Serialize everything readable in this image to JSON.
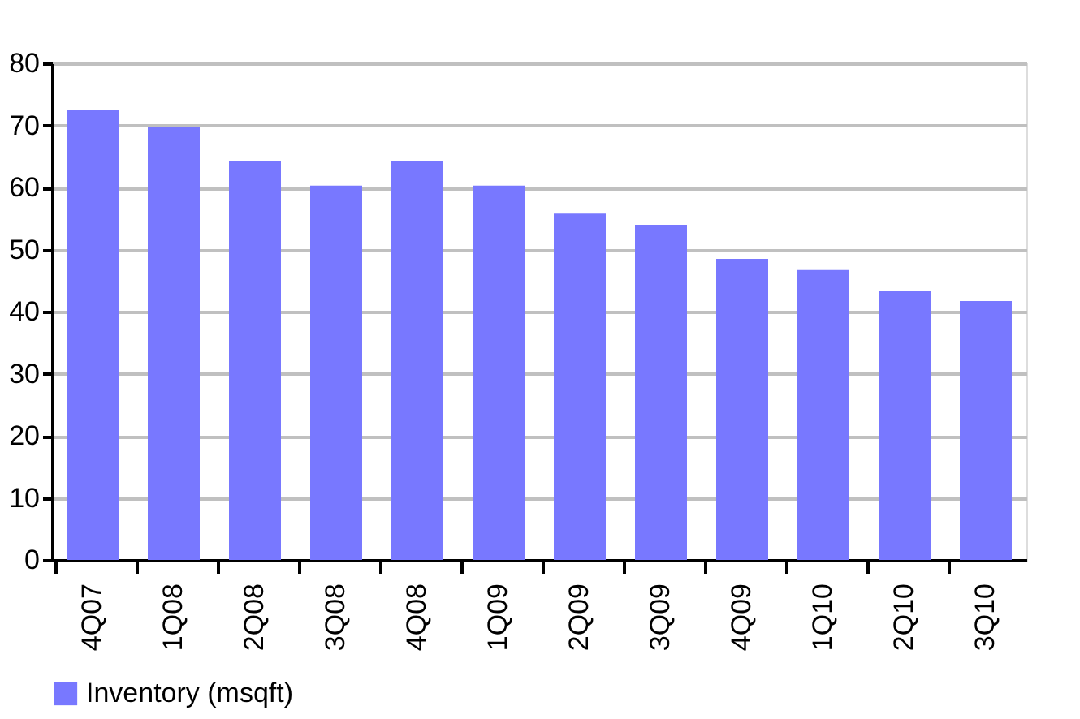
{
  "chart_data": {
    "type": "bar",
    "categories": [
      "4Q07",
      "1Q08",
      "2Q08",
      "3Q08",
      "4Q08",
      "1Q09",
      "2Q09",
      "3Q09",
      "4Q09",
      "1Q10",
      "2Q10",
      "3Q10"
    ],
    "series": [
      {
        "name": "Inventory (msqft)",
        "color": "#7878ff",
        "values": [
          72.5,
          69.7,
          64.2,
          60.3,
          64.2,
          60.3,
          55.8,
          54.0,
          48.5,
          46.7,
          43.3,
          41.7
        ]
      }
    ],
    "ylim": [
      0,
      80
    ],
    "yticks": [
      0,
      10,
      20,
      30,
      40,
      50,
      60,
      70,
      80
    ],
    "grid": "y",
    "legend": "bottom"
  }
}
